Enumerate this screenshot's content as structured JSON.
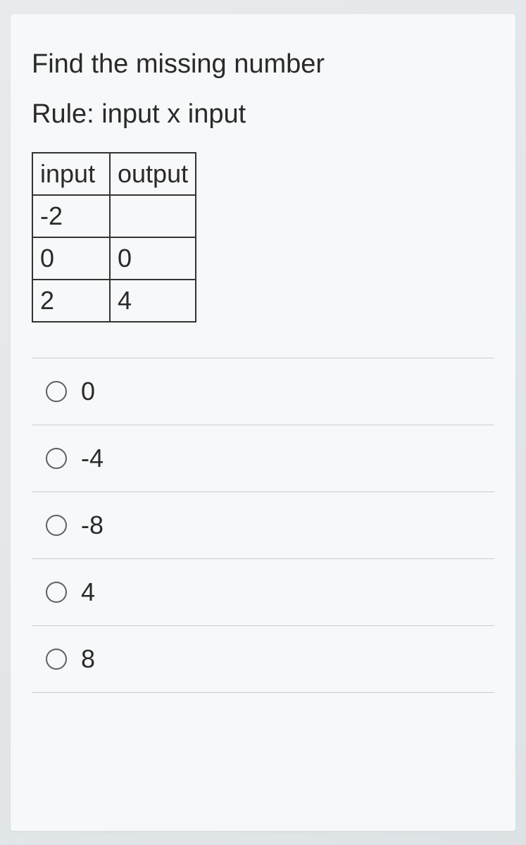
{
  "question": {
    "title": "Find the missing number",
    "rule": "Rule: input x input"
  },
  "table": {
    "headers": {
      "input": "input",
      "output": "output"
    },
    "rows": [
      {
        "input": "-2",
        "output": ""
      },
      {
        "input": "0",
        "output": "0"
      },
      {
        "input": "2",
        "output": "4"
      }
    ]
  },
  "options": [
    {
      "label": "0"
    },
    {
      "label": "-4"
    },
    {
      "label": "-8"
    },
    {
      "label": "4"
    },
    {
      "label": "8"
    }
  ],
  "colors": {
    "text": "#2a2a2a",
    "border_table": "#333333",
    "divider": "#c8ccd0",
    "radio_border": "#5a6068",
    "card_bg": "#f7f8f9",
    "page_bg": "#e8ebed"
  }
}
